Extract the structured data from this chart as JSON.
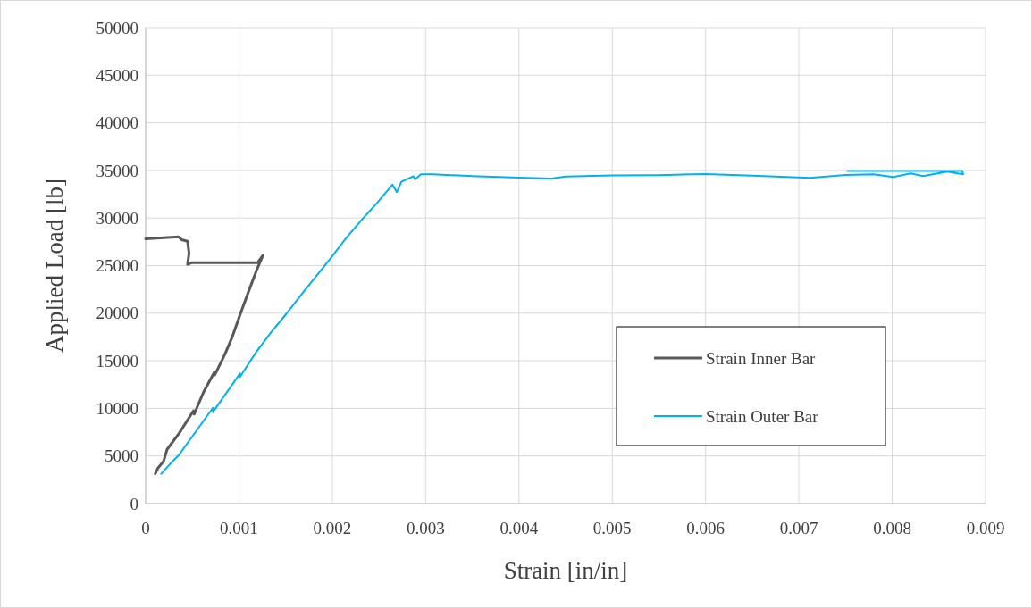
{
  "chart_data": {
    "type": "line",
    "xlabel": "Strain [in/in]",
    "ylabel": "Applied Load [lb]",
    "xlim": [
      0,
      0.009
    ],
    "xticks": [
      0,
      0.001,
      0.002,
      0.003,
      0.004,
      0.005,
      0.006,
      0.007,
      0.008,
      0.009
    ],
    "ylim": [
      0,
      50000
    ],
    "yticks": [
      0,
      5000,
      10000,
      15000,
      20000,
      25000,
      30000,
      35000,
      40000,
      45000,
      50000
    ],
    "grid": true,
    "legend": "right",
    "marker": "none",
    "line_style": "solid",
    "series": [
      {
        "name": "Strain Inner Bar",
        "color": "#595959",
        "x": [
          0.000103,
          0.00013,
          0.000192,
          0.00023,
          0.00036,
          0.000513,
          0.00052,
          0.00062,
          0.000737,
          0.00074,
          0.00085,
          0.00093,
          0.00101,
          0.00109,
          0.001186,
          0.001256,
          0.0012,
          0.000497,
          0.000449,
          0.000465,
          0.000449,
          0.000385,
          0.000353,
          0
        ],
        "values": [
          3125,
          3700,
          4440,
          5700,
          7400,
          9750,
          9400,
          11700,
          13810,
          13500,
          15700,
          17560,
          19800,
          21940,
          24440,
          26060,
          25310,
          25310,
          25120,
          26300,
          27560,
          27720,
          28030,
          27810
        ]
      },
      {
        "name": "Strain Outer Bar",
        "color": "#00b0f0",
        "x": [
          0.000167,
          0.000288,
          0.000353,
          0.00054,
          0.000721,
          0.000721,
          0.00101,
          0.00101,
          0.001186,
          0.001346,
          0.001506,
          0.001667,
          0.001827,
          0.001987,
          0.002147,
          0.002324,
          0.002484,
          0.002644,
          0.002692,
          0.00274,
          0.002869,
          0.002885,
          0.002949,
          0.003077,
          0.0035,
          0.004,
          0.00435,
          0.0045,
          0.005,
          0.0055,
          0.006,
          0.0065,
          0.00712,
          0.0075,
          0.0078,
          0.00801,
          0.0082,
          0.00833,
          0.00859,
          0.00876,
          0.00875,
          0.00752
        ],
        "values": [
          3125,
          4440,
          5060,
          7600,
          10060,
          9600,
          13660,
          13300,
          15940,
          18030,
          19910,
          21940,
          23880,
          25840,
          27880,
          29910,
          31630,
          33500,
          32720,
          33810,
          34380,
          34060,
          34590,
          34590,
          34400,
          34250,
          34150,
          34350,
          34480,
          34500,
          34625,
          34450,
          34220,
          34530,
          34600,
          34320,
          34690,
          34410,
          34880,
          34600,
          34940,
          34940
        ]
      }
    ]
  }
}
